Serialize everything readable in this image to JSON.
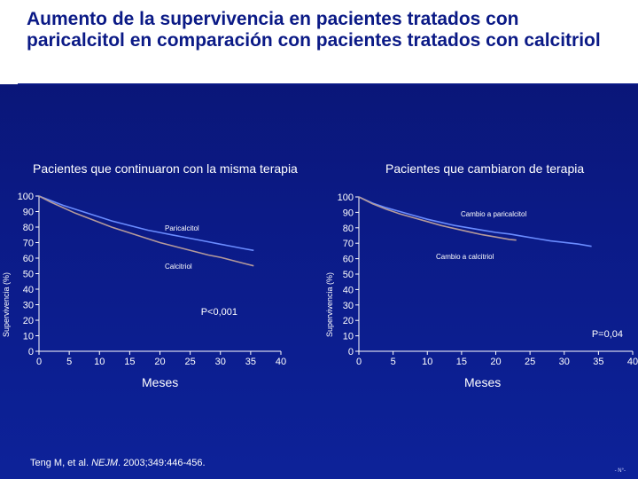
{
  "slide": {
    "title": "Aumento de la supervivencia en pacientes tratados con paricalcitol en comparación con pacientes tratados con calcitriol",
    "citation_prefix": "Teng M, et al. ",
    "citation_journal": "NEJM",
    "citation_suffix": ". 2003;349:446-456.",
    "slide_number": "- N°-"
  },
  "colors": {
    "background": "#0b1a86",
    "paricalcitol": "#6a8cff",
    "calcitriol": "#b59a9a"
  },
  "chart_data": [
    {
      "type": "line",
      "title": "Pacientes que continuaron con la misma terapia",
      "xlabel": "Meses",
      "ylabel": "Supervivencia (%)",
      "xlim": [
        0,
        40
      ],
      "ylim": [
        0,
        100
      ],
      "xticks": [
        0,
        5,
        10,
        15,
        20,
        25,
        30,
        35,
        40
      ],
      "yticks": [
        0,
        10,
        20,
        30,
        40,
        50,
        60,
        70,
        80,
        90,
        100
      ],
      "annotation": "P<0,001",
      "series": [
        {
          "name": "Paricalcitol",
          "color": "#6a8cff",
          "x": [
            0,
            2,
            4,
            6,
            8,
            10,
            12,
            14,
            16,
            18,
            20,
            22,
            24,
            26,
            28,
            30,
            32,
            34,
            35.5
          ],
          "y": [
            100,
            97,
            94,
            91.5,
            89,
            86.5,
            84,
            82,
            80,
            78,
            76.5,
            75,
            73.5,
            72,
            70.5,
            69,
            67.5,
            66,
            65
          ]
        },
        {
          "name": "Calcitriol",
          "color": "#b59a9a",
          "x": [
            0,
            2,
            4,
            6,
            8,
            10,
            12,
            14,
            16,
            18,
            20,
            22,
            24,
            26,
            28,
            30,
            32,
            34,
            35.5
          ],
          "y": [
            100,
            96,
            92.5,
            89,
            86,
            83,
            80,
            77.5,
            75,
            72.5,
            70,
            68,
            66,
            64,
            62,
            60.5,
            58.5,
            56.5,
            55
          ]
        }
      ]
    },
    {
      "type": "line",
      "title": "Pacientes que cambiaron de terapia",
      "xlabel": "Meses",
      "ylabel": "Supervivencia (%)",
      "xlim": [
        0,
        40
      ],
      "ylim": [
        0,
        100
      ],
      "xticks": [
        0,
        5,
        10,
        15,
        20,
        25,
        30,
        35,
        40
      ],
      "yticks": [
        0,
        10,
        20,
        30,
        40,
        50,
        60,
        70,
        80,
        90,
        100
      ],
      "annotation": "P=0,04",
      "series": [
        {
          "name": "Cambio a paricalcitol",
          "color": "#6a8cff",
          "x": [
            0,
            2,
            4,
            6,
            8,
            10,
            12,
            14,
            16,
            18,
            20,
            22,
            24,
            26,
            28,
            30,
            32,
            34
          ],
          "y": [
            100,
            96,
            93,
            90.5,
            88,
            85.5,
            83.5,
            81.5,
            80,
            78.5,
            77,
            76,
            74.5,
            73,
            71.5,
            70.5,
            69.5,
            68
          ]
        },
        {
          "name": "Cambio a calcitriol",
          "color": "#b59a9a",
          "x": [
            0,
            2,
            4,
            6,
            8,
            10,
            12,
            14,
            16,
            18,
            20,
            22,
            23
          ],
          "y": [
            100,
            95.5,
            92,
            89,
            86.5,
            84,
            81.5,
            79.5,
            77.5,
            75.5,
            74,
            72.5,
            72
          ]
        }
      ]
    }
  ]
}
